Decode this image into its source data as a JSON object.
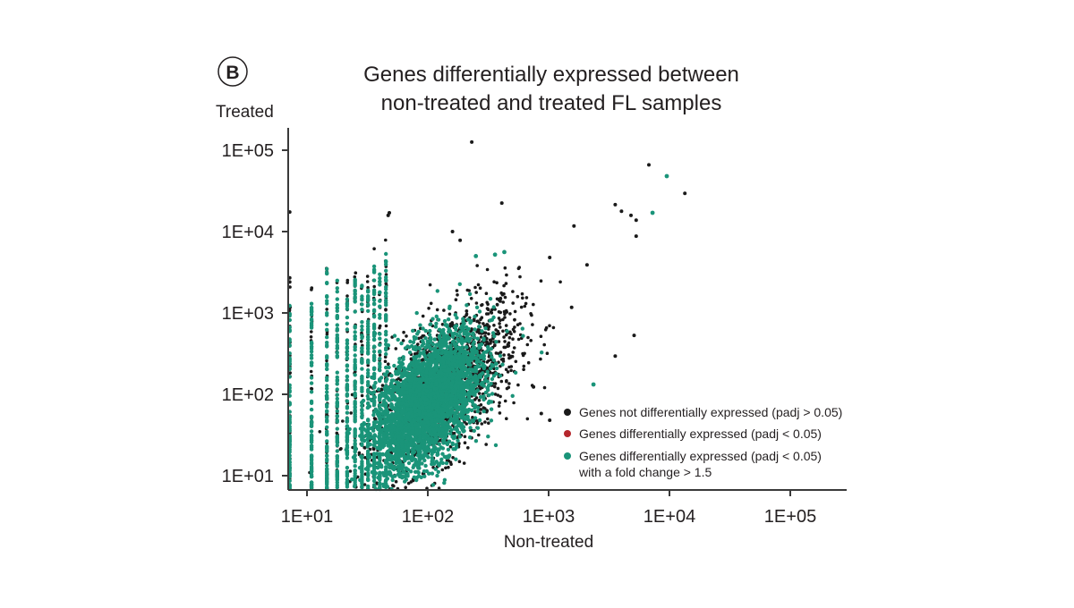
{
  "panel_label": "B",
  "chart_data": {
    "type": "scatter",
    "title": [
      "Genes differentially expressed between",
      "non-treated and treated FL samples"
    ],
    "xlabel": "Non-treated",
    "ylabel": "Treated",
    "xscale": "log",
    "yscale": "log",
    "xlim": [
      7,
      300000
    ],
    "ylim": [
      6.6,
      200000
    ],
    "xticks": [
      10,
      100,
      1000,
      10000,
      100000
    ],
    "xtick_labels": [
      "1E+01",
      "1E+02",
      "1E+03",
      "1E+04",
      "1E+05"
    ],
    "yticks": [
      10,
      100,
      1000,
      10000,
      100000
    ],
    "ytick_labels": [
      "1E+01",
      "1E+02",
      "1E+03",
      "1E+04",
      "1E+05"
    ],
    "legend_position": "bottom-right",
    "series": [
      {
        "name": "Genes not differentially expressed (padj > 0.05)",
        "color": "#1a1a1a",
        "cloud": {
          "n": 1600,
          "log_x_center": 2.15,
          "log_x_sd": 0.3,
          "log_y_sd": 0.42
        },
        "points": [
          [
            231,
            126000
          ],
          [
            6760,
            66000
          ],
          [
            13400,
            29500
          ],
          [
            3560,
            21400
          ],
          [
            4010,
            17800
          ],
          [
            4800,
            15800
          ],
          [
            5300,
            13800
          ],
          [
            5300,
            8800
          ],
          [
            1620,
            11700
          ],
          [
            2080,
            3900
          ],
          [
            1020,
            4800
          ],
          [
            1550,
            1170
          ],
          [
            5100,
            530
          ],
          [
            3560,
            295
          ],
          [
            410,
            22400
          ],
          [
            7.2,
            17400
          ],
          [
            47,
            15800
          ],
          [
            48,
            17000
          ],
          [
            160,
            10000
          ],
          [
            185,
            7800
          ],
          [
            750,
            123
          ],
          [
            870,
            58
          ],
          [
            1020,
            48
          ],
          [
            7.2,
            2700
          ],
          [
            7.2,
            2400
          ]
        ]
      },
      {
        "name": "Genes differentially expressed (padj < 0.05)",
        "color": "#b5272d",
        "points": []
      },
      {
        "name": "Genes differentially expressed (padj < 0.05) with a fold change > 1.5",
        "color": "#1a9479",
        "cloud": {
          "n": 3200,
          "log_x_center": 2.0,
          "log_x_sd": 0.22,
          "log_y_sd": 0.36
        },
        "columns": [
          [
            7.2,
            1400
          ],
          [
            10.9,
            1400
          ],
          [
            14.6,
            3900
          ],
          [
            17.8,
            2500
          ],
          [
            21.5,
            2200
          ],
          [
            25,
            2600
          ],
          [
            28.5,
            2400
          ],
          [
            32,
            2100
          ],
          [
            36,
            4000
          ],
          [
            40,
            3000
          ],
          [
            45,
            5500
          ]
        ],
        "points": [
          [
            9500,
            48000
          ],
          [
            7240,
            17000
          ],
          [
            2350,
            132
          ],
          [
            430,
            5600
          ],
          [
            360,
            5200
          ],
          [
            250,
            5000
          ]
        ]
      }
    ],
    "legend": {
      "items": [
        "Genes not differentially expressed (padj > 0.05)",
        "Genes differentially expressed (padj < 0.05)",
        "Genes differentially expressed (padj < 0.05)"
      ],
      "item3_line2": "with a fold change > 1.5"
    }
  }
}
